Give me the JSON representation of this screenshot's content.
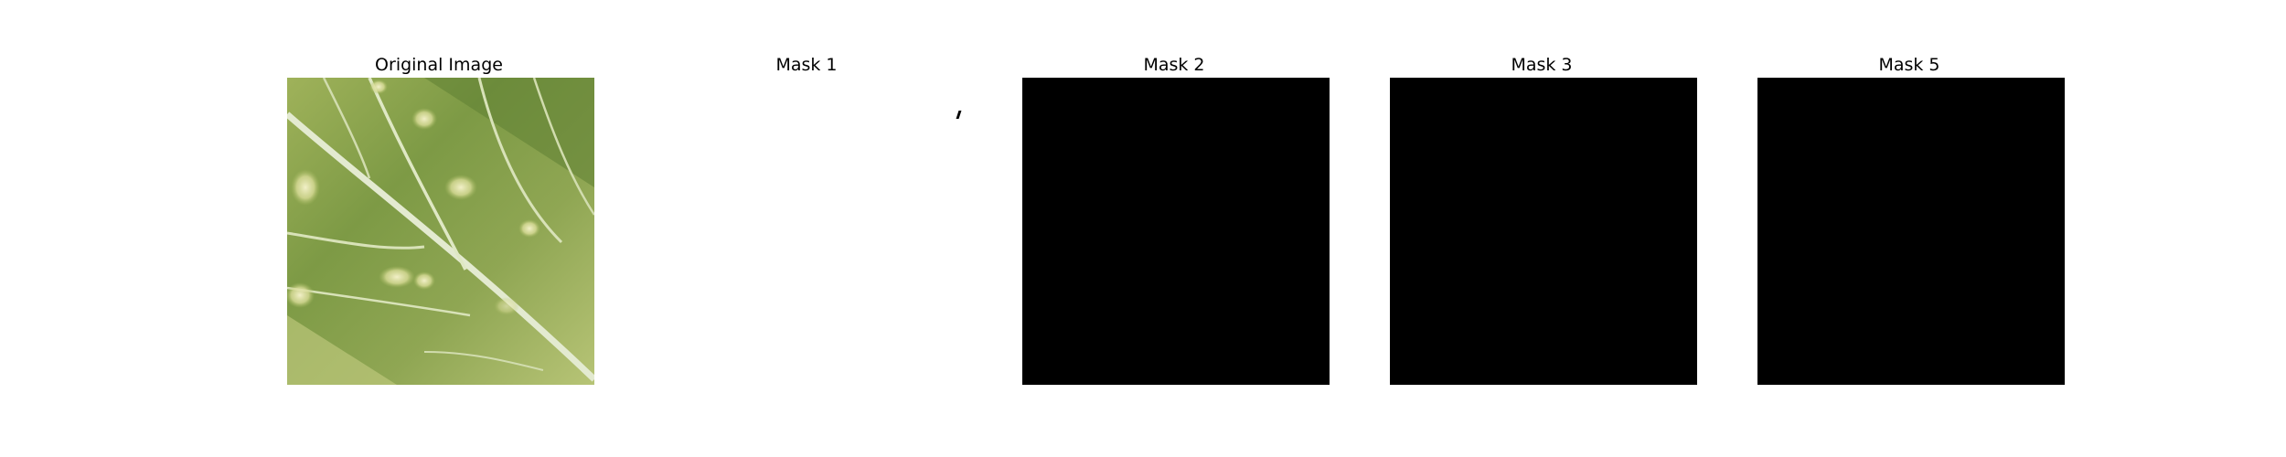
{
  "panels": [
    {
      "title": "Original Image",
      "content": "leaf-photo"
    },
    {
      "title": "Mask 1",
      "content": "white-mask"
    },
    {
      "title": "Mask 2",
      "content": "black-mask"
    },
    {
      "title": "Mask 3",
      "content": "black-mask"
    },
    {
      "title": "Mask 5",
      "content": "black-mask"
    }
  ],
  "colors": {
    "background": "#ffffff",
    "mask_fill": "#000000",
    "leaf_dark": "#6f8f3c",
    "leaf_light": "#c9d38a",
    "leaf_vein": "#dfe8c4"
  }
}
